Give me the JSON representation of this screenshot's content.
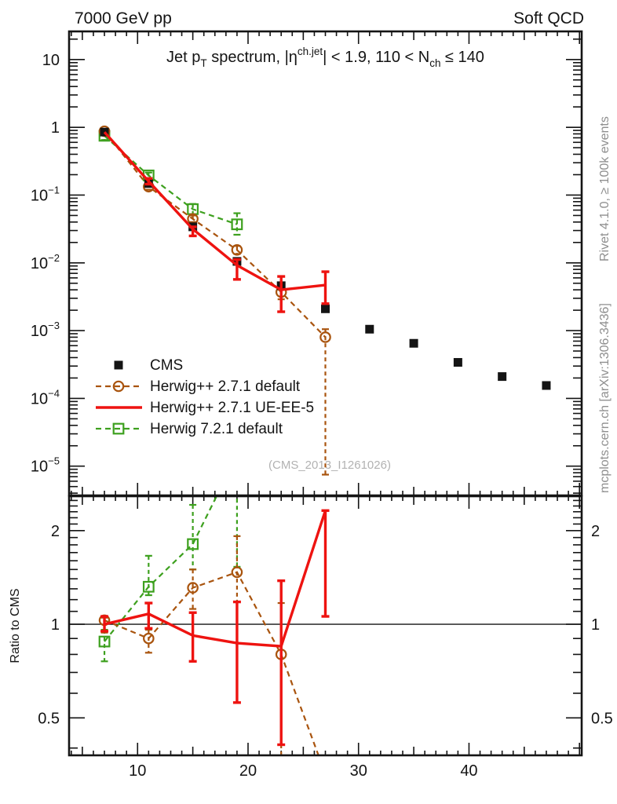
{
  "header": {
    "left": "7000 GeV pp",
    "right": "Soft QCD"
  },
  "side_notes": {
    "top": "Rivet 4.1.0, ≥ 100k events",
    "bottom": "mcplots.cern.ch [arXiv:1306.3436]"
  },
  "watermark": "(CMS_2013_I1261026)",
  "chart_data": {
    "type": "line",
    "title": "Jet pT spectrum, |η^ch.jet| < 1.9, 110 < Nch ≤ 140",
    "title_parts": [
      {
        "text": "Jet p"
      },
      {
        "text": "T",
        "script": "sub"
      },
      {
        "text": " spectrum, |η",
        "script": "normal"
      },
      {
        "text": "ch.jet",
        "script": "sup"
      },
      {
        "text": "| < 1.9, 110 < N",
        "script": "normal"
      },
      {
        "text": "ch",
        "script": "sub"
      },
      {
        "text": " ≤ 140",
        "script": "normal"
      }
    ],
    "xlim": [
      3.8,
      50.2
    ],
    "x_major_ticks": [
      10,
      20,
      30,
      40
    ],
    "x_minor_tick_step": 1,
    "grid": false,
    "legend_position": "left-middle",
    "main_panel": {
      "ylog": true,
      "ylim": [
        3.7e-06,
        26
      ],
      "ytick_labels": [
        {
          "decade": 1,
          "base": "10",
          "exp": ""
        },
        {
          "decade": 0,
          "base": "1",
          "exp": ""
        },
        {
          "decade": -1,
          "base": "10",
          "exp": "-1"
        },
        {
          "decade": -2,
          "base": "10",
          "exp": "-2"
        },
        {
          "decade": -3,
          "base": "10",
          "exp": "-3"
        },
        {
          "decade": -4,
          "base": "10",
          "exp": "-4"
        },
        {
          "decade": -5,
          "base": "10",
          "exp": "-5"
        }
      ],
      "series": [
        {
          "name": "CMS",
          "slug": "cms",
          "color": "#141414",
          "marker": "square-filled",
          "line": "none",
          "z": 2,
          "x": [
            7,
            11,
            15,
            19,
            23,
            27,
            31,
            35,
            39,
            43,
            47
          ],
          "y": [
            0.85,
            0.148,
            0.034,
            0.0105,
            0.0046,
            0.0021,
            0.00105,
            0.00065,
            0.00034,
            0.00021,
            0.000155
          ],
          "err": [
            null,
            null,
            null,
            null,
            null,
            null,
            null,
            null,
            null,
            null,
            null
          ]
        },
        {
          "name": "Herwig++ 2.7.1 default",
          "slug": "herwigpp-default",
          "color": "#a9540e",
          "marker": "circle-open",
          "line": "dashed",
          "z": 1,
          "x": [
            7,
            11,
            15,
            19,
            23,
            27
          ],
          "y": [
            0.875,
            0.133,
            0.0445,
            0.0155,
            0.0037,
            0.0008
          ],
          "err": [
            [
              0.82,
              0.93
            ],
            [
              0.12,
              0.147
            ],
            [
              0.04,
              0.05
            ],
            [
              0.0135,
              0.0178
            ],
            [
              0.0029,
              0.0047
            ],
            [
              7.5e-06,
              0.00105
            ]
          ]
        },
        {
          "name": "Herwig++ 2.7.1 UE-EE-5",
          "slug": "herwigpp-ueee5",
          "color": "#ee1310",
          "marker": "none",
          "line": "solid",
          "z": 3,
          "x": [
            7,
            11,
            15,
            19,
            23,
            27
          ],
          "y": [
            0.85,
            0.16,
            0.0315,
            0.0092,
            0.004,
            0.0047
          ],
          "err": [
            null,
            [
              0.145,
              0.176
            ],
            [
              0.025,
              0.034
            ],
            [
              0.0057,
              0.0112
            ],
            [
              0.0019,
              0.0063
            ],
            [
              0.0025,
              0.0074
            ]
          ]
        },
        {
          "name": "Herwig 7.2.1 default",
          "slug": "herwig7-default",
          "color": "#3da01e",
          "marker": "square-open",
          "line": "dashed",
          "z": 0,
          "x": [
            7,
            11,
            15,
            19
          ],
          "y": [
            0.75,
            0.195,
            0.062,
            0.037
          ],
          "err": [
            [
              0.65,
              0.85
            ],
            [
              0.165,
              0.215
            ],
            [
              0.052,
              0.074
            ],
            [
              0.026,
              0.054
            ]
          ]
        }
      ]
    },
    "ratio_panel": {
      "ylabel": "Ratio to CMS",
      "ylog": true,
      "ylim": [
        0.379,
        2.58
      ],
      "reference_line": 1,
      "yticks": [
        {
          "v": 2,
          "label": "2"
        },
        {
          "v": 1,
          "label": "1"
        },
        {
          "v": 0.5,
          "label": "0.5"
        }
      ],
      "series": [
        {
          "name": "Herwig++ 2.7.1 default",
          "slug": "herwigpp-default",
          "color": "#a9540e",
          "marker": "circle-open",
          "line": "dashed",
          "z": 1,
          "x": [
            7,
            11,
            15,
            19,
            23,
            27
          ],
          "y": [
            1.03,
            0.9,
            1.31,
            1.47,
            0.8,
            0.33
          ],
          "err": [
            [
              0.94,
              1.05
            ],
            [
              0.81,
              0.96
            ],
            [
              1.12,
              1.5
            ],
            [
              1.18,
              1.92
            ],
            [
              0.37,
              1.17
            ],
            null
          ]
        },
        {
          "name": "Herwig++ 2.7.1 UE-EE-5",
          "slug": "herwigpp-ueee5",
          "color": "#ee1310",
          "marker": "none",
          "line": "solid",
          "z": 2,
          "x": [
            7,
            11,
            15,
            19,
            23,
            27
          ],
          "y": [
            1.0,
            1.08,
            0.92,
            0.87,
            0.85,
            2.32
          ],
          "err": [
            [
              0.95,
              1.06
            ],
            [
              0.97,
              1.17
            ],
            [
              0.76,
              1.09
            ],
            [
              0.56,
              1.18
            ],
            [
              0.41,
              1.38
            ],
            [
              1.06,
              2.32
            ]
          ]
        },
        {
          "name": "Herwig 7.2.1 default",
          "slug": "herwig7-default",
          "color": "#3da01e",
          "marker": "square-open",
          "line": "dashed",
          "z": 0,
          "x": [
            7,
            11,
            15,
            19
          ],
          "y": [
            0.88,
            1.32,
            1.81,
            3.5
          ],
          "err": [
            [
              0.76,
              0.96
            ],
            [
              1.24,
              1.66
            ],
            [
              1.5,
              2.42
            ],
            [
              1.53,
              4.5
            ]
          ]
        }
      ]
    },
    "legend": {
      "entries": [
        {
          "label": "CMS",
          "marker": "square-filled",
          "line": "none",
          "color": "#141414"
        },
        {
          "label": "Herwig++ 2.7.1 default",
          "marker": "circle-open",
          "line": "dashed",
          "color": "#a9540e"
        },
        {
          "label": "Herwig++ 2.7.1 UE-EE-5",
          "marker": "none",
          "line": "solid",
          "color": "#ee1310"
        },
        {
          "label": "Herwig 7.2.1 default",
          "marker": "square-open",
          "line": "dashed",
          "color": "#3da01e"
        }
      ]
    }
  }
}
